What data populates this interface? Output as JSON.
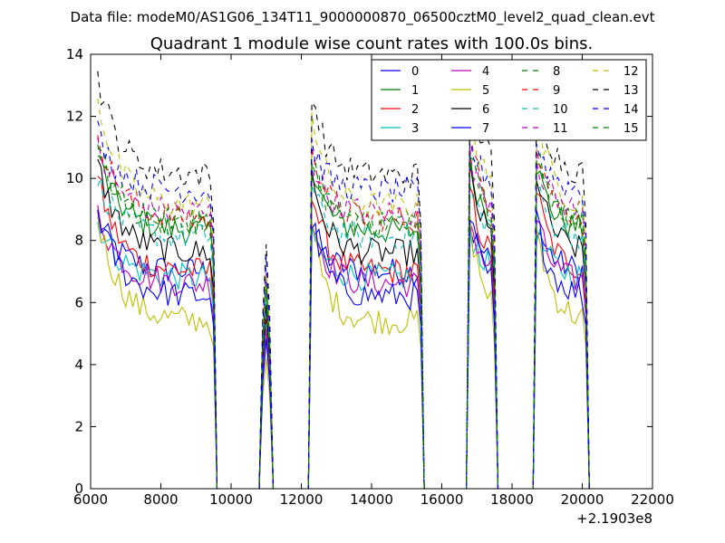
{
  "chart_data": {
    "type": "line",
    "suptitle": "Data file: modeM0/AS1G06_134T11_9000000870_06500cztM0_level2_quad_clean.evt",
    "title": "Quadrant 1 module wise count rates with 100.0s bins.",
    "xlabel": "",
    "ylabel": "",
    "x_offset_label": "+2.1903e8",
    "xlim": [
      6000,
      22000
    ],
    "ylim": [
      0,
      14
    ],
    "xticks": [
      6000,
      8000,
      10000,
      12000,
      14000,
      16000,
      18000,
      20000,
      22000
    ],
    "yticks": [
      0,
      2,
      4,
      6,
      8,
      10,
      12,
      14
    ],
    "grid": false,
    "legend_position": "top-right",
    "segments": [
      {
        "start": 6200,
        "end": 9500
      },
      {
        "start": 10900,
        "end": 11100
      },
      {
        "start": 12300,
        "end": 15400
      },
      {
        "start": 16800,
        "end": 17500
      },
      {
        "start": 18700,
        "end": 20100
      }
    ],
    "series": [
      {
        "name": "0",
        "color": "#0000ff",
        "dash": "solid",
        "start": 8.8,
        "level": 7.0
      },
      {
        "name": "1",
        "color": "#008000",
        "dash": "solid",
        "start": 10.8,
        "level": 8.3
      },
      {
        "name": "2",
        "color": "#ff0000",
        "dash": "solid",
        "start": 10.0,
        "level": 7.0
      },
      {
        "name": "3",
        "color": "#00bfbf",
        "dash": "solid",
        "start": 8.6,
        "level": 6.8
      },
      {
        "name": "4",
        "color": "#bf00bf",
        "dash": "solid",
        "start": 9.0,
        "level": 6.6
      },
      {
        "name": "5",
        "color": "#bfbf00",
        "dash": "solid",
        "start": 8.8,
        "level": 5.4
      },
      {
        "name": "6",
        "color": "#000000",
        "dash": "solid",
        "start": 10.5,
        "level": 7.6
      },
      {
        "name": "7",
        "color": "#0000ff",
        "dash": "solid",
        "start": 9.0,
        "level": 6.2
      },
      {
        "name": "8",
        "color": "#008000",
        "dash": "dashed",
        "start": 11.2,
        "level": 8.6
      },
      {
        "name": "9",
        "color": "#ff0000",
        "dash": "dashed",
        "start": 11.6,
        "level": 8.7
      },
      {
        "name": "10",
        "color": "#00bfbf",
        "dash": "dashed",
        "start": 10.0,
        "level": 8.1
      },
      {
        "name": "11",
        "color": "#bf00bf",
        "dash": "dashed",
        "start": 11.0,
        "level": 8.9
      },
      {
        "name": "12",
        "color": "#bfbf00",
        "dash": "dashed",
        "start": 12.6,
        "level": 9.1
      },
      {
        "name": "13",
        "color": "#000000",
        "dash": "dashed",
        "start": 13.3,
        "level": 10.1
      },
      {
        "name": "14",
        "color": "#0000ff",
        "dash": "dashed",
        "start": 11.5,
        "level": 9.6
      },
      {
        "name": "15",
        "color": "#008000",
        "dash": "dashed",
        "start": 11.2,
        "level": 8.5
      }
    ]
  }
}
